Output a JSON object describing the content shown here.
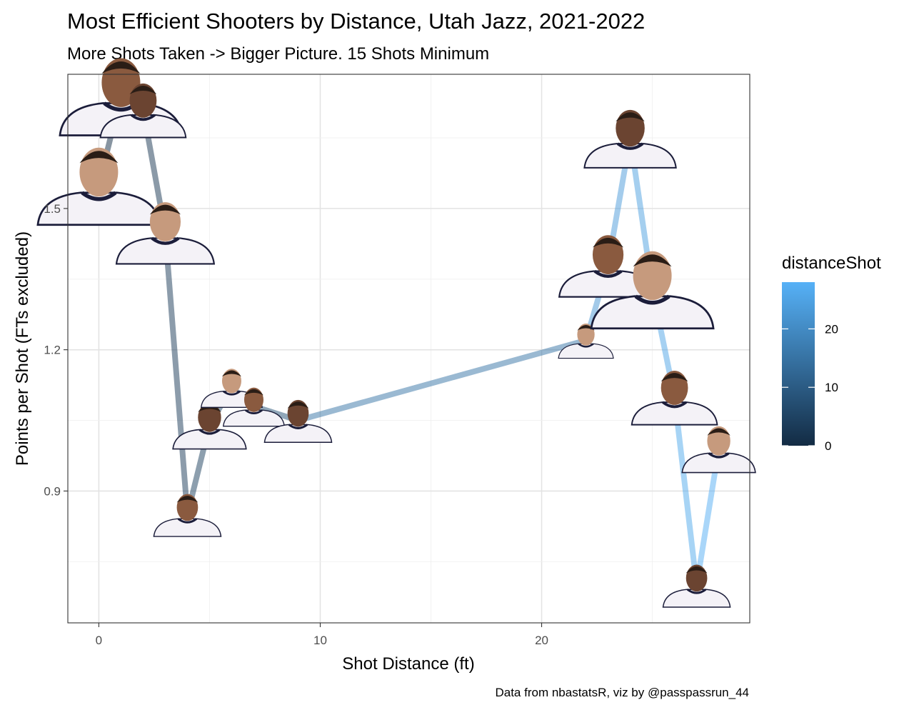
{
  "chart_data": {
    "type": "line",
    "title": "Most Efficient Shooters by Distance, Utah Jazz, 2021-2022",
    "subtitle": "More Shots Taken -> Bigger Picture. 15 Shots Minimum",
    "xlabel": "Shot Distance (ft)",
    "ylabel": "Points per Shot (FTs excluded)",
    "caption": "Data from nbastatsR, viz by @passpassrun_44",
    "xlim": [
      -1.4,
      29.4
    ],
    "ylim": [
      0.62,
      1.785
    ],
    "x_ticks": [
      0,
      10,
      20
    ],
    "x_tick_labels": [
      "0",
      "10",
      "20"
    ],
    "y_ticks": [
      0.9,
      1.2,
      1.5
    ],
    "y_tick_labels": [
      "0.9",
      "1.2",
      "1.5"
    ],
    "grid": true,
    "legend": {
      "title": "distanceShot",
      "position": "right",
      "scale_min": 0,
      "scale_max": 28,
      "ticks": [
        0,
        10,
        20
      ],
      "tick_labels": [
        "0",
        "10",
        "20"
      ],
      "color_low": "#132b43",
      "color_high": "#56b1f7"
    },
    "point_marker": "player-headshot",
    "points": [
      {
        "x": 0,
        "y": 1.55,
        "size": 1.0
      },
      {
        "x": 1,
        "y": 1.74,
        "size": 1.0
      },
      {
        "x": 2,
        "y": 1.71,
        "size": 0.7
      },
      {
        "x": 3,
        "y": 1.45,
        "size": 0.8
      },
      {
        "x": 4,
        "y": 0.85,
        "size": 0.55
      },
      {
        "x": 5,
        "y": 1.04,
        "size": 0.6
      },
      {
        "x": 6,
        "y": 1.12,
        "size": 0.5
      },
      {
        "x": 7,
        "y": 1.08,
        "size": 0.5
      },
      {
        "x": 9,
        "y": 1.05,
        "size": 0.55
      },
      {
        "x": 22,
        "y": 1.22,
        "size": 0.45
      },
      {
        "x": 23,
        "y": 1.38,
        "size": 0.8
      },
      {
        "x": 24,
        "y": 1.65,
        "size": 0.75
      },
      {
        "x": 25,
        "y": 1.33,
        "size": 1.0
      },
      {
        "x": 26,
        "y": 1.1,
        "size": 0.7
      },
      {
        "x": 27,
        "y": 0.7,
        "size": 0.55
      },
      {
        "x": 28,
        "y": 0.99,
        "size": 0.6
      }
    ]
  }
}
